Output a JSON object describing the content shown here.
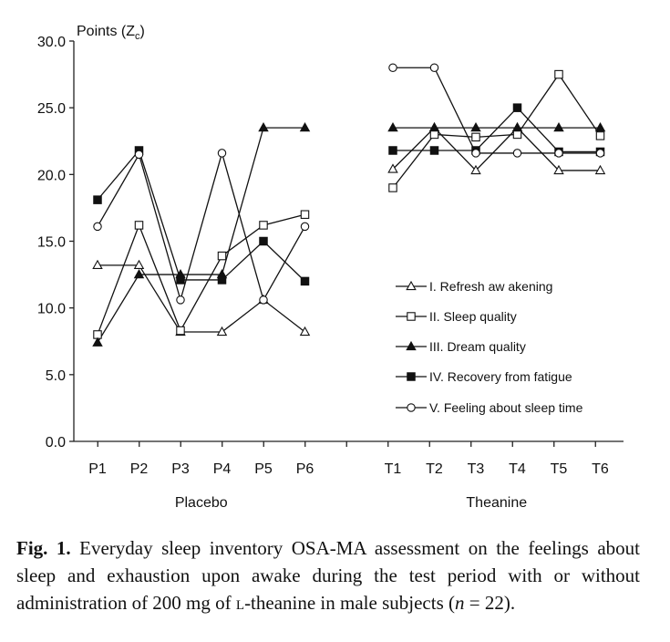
{
  "chart_data": {
    "type": "line",
    "ylabel_main": "Points (Z",
    "ylabel_sub": "c",
    "ylabel_close": ")",
    "ylim": [
      0,
      30
    ],
    "yticks": [
      "0.0",
      "5.0",
      "10.0",
      "15.0",
      "20.0",
      "25.0",
      "30.0"
    ],
    "groups": [
      {
        "label": "Placebo",
        "categories": [
          "P1",
          "P2",
          "P3",
          "P4",
          "P5",
          "P6"
        ]
      },
      {
        "label": "Theanine",
        "categories": [
          "T1",
          "T2",
          "T3",
          "T4",
          "T5",
          "T6"
        ]
      }
    ],
    "legend_position": "right, inside plot",
    "series": [
      {
        "name": "I. Refresh aw akening",
        "marker": "open-triangle",
        "values": [
          13.2,
          13.2,
          8.2,
          8.2,
          10.6,
          8.2,
          20.4,
          23.5,
          20.3,
          23.5,
          20.3,
          20.3
        ]
      },
      {
        "name": "II. Sleep quality",
        "marker": "open-square",
        "values": [
          8.0,
          16.2,
          8.3,
          13.9,
          16.2,
          17.0,
          19.0,
          23.0,
          22.8,
          23.0,
          27.5,
          22.9
        ]
      },
      {
        "name": "III. Dream quality",
        "marker": "filled-triangle",
        "values": [
          7.4,
          12.5,
          12.5,
          12.5,
          23.5,
          23.5,
          23.5,
          23.5,
          23.5,
          23.5,
          23.5,
          23.5
        ]
      },
      {
        "name": "IV. Recovery from fatigue",
        "marker": "filled-square",
        "values": [
          18.1,
          21.8,
          12.1,
          12.1,
          15.0,
          12.0,
          21.8,
          21.8,
          21.8,
          25.0,
          21.7,
          21.7
        ]
      },
      {
        "name": "V. Feeling about sleep time",
        "marker": "open-circle",
        "values": [
          16.1,
          21.5,
          10.6,
          21.6,
          10.6,
          16.1,
          28.0,
          28.0,
          21.6,
          21.6,
          21.6,
          21.6
        ]
      }
    ]
  },
  "caption": {
    "label": "Fig. 1.",
    "text_a": " Everyday sleep inventory OSA-MA assessment on the feelings about sleep and exhaustion upon awake during the test period with or without administration of 200 mg of ",
    "prefix_sc": "l",
    "text_b": "-theanine in male subjects (",
    "n_var": "n",
    "text_c": " = 22)."
  }
}
